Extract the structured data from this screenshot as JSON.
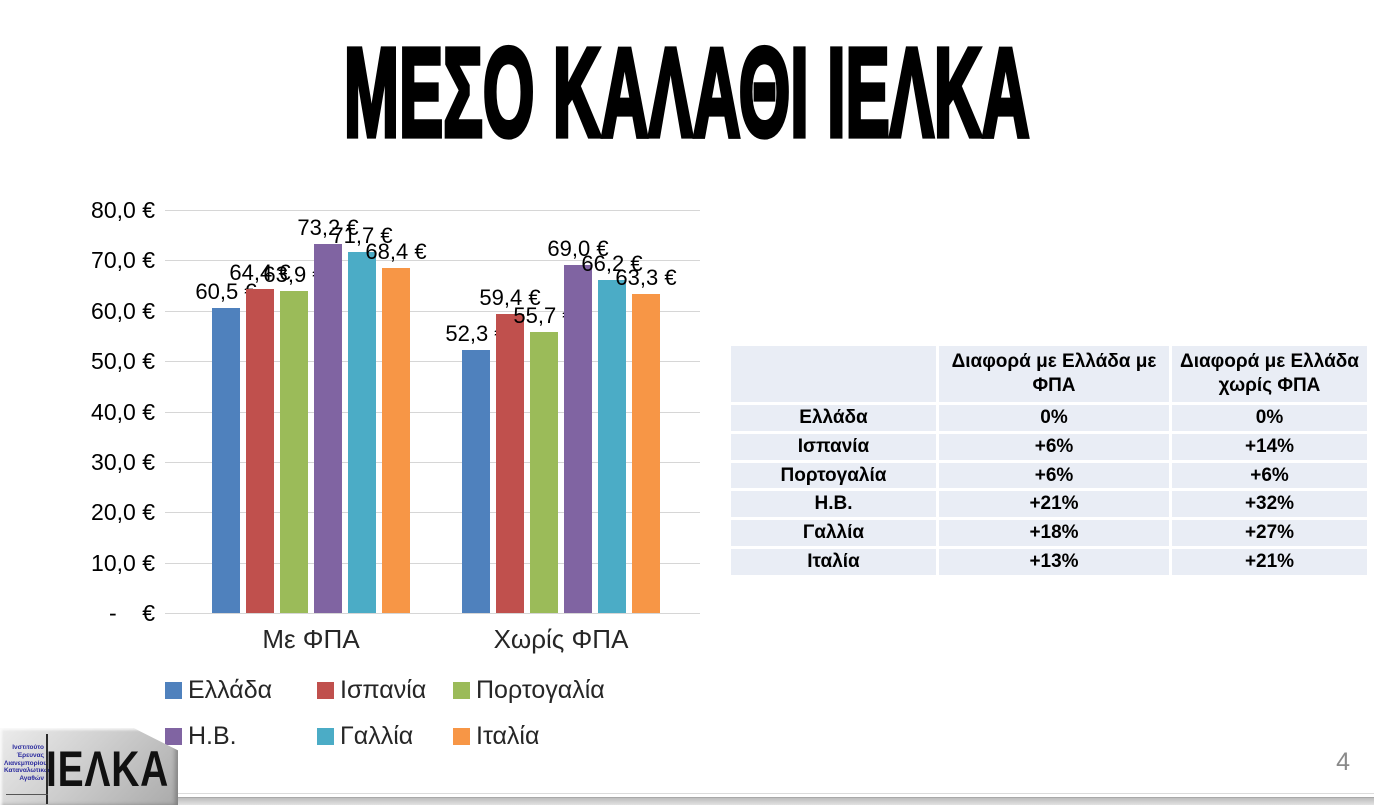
{
  "slide": {
    "title": "ΜΕΣΟ ΚΑΛΑΘΙ ΙΕΛΚΑ",
    "page_number": "4"
  },
  "logo": {
    "acronym": "ΙΕΛΚΑ",
    "subtext_lines": [
      "Ινστιτούτο",
      "Έρευνας",
      "Λιανεμπορίου",
      "Καταναλωτικών",
      "Αγαθών"
    ]
  },
  "chart_data": {
    "type": "bar",
    "title": "",
    "categories": [
      "Με ΦΠΑ",
      "Χωρίς ΦΠΑ"
    ],
    "series": [
      {
        "name": "Ελλάδα",
        "color": "#4F81BD",
        "values": [
          60.5,
          52.3
        ],
        "labels": [
          "60,5 €",
          "52,3 €"
        ]
      },
      {
        "name": "Ισπανία",
        "color": "#C0504D",
        "values": [
          64.4,
          59.4
        ],
        "labels": [
          "64,4 €",
          "59,4 €"
        ]
      },
      {
        "name": "Πορτογαλία",
        "color": "#9BBB59",
        "values": [
          63.9,
          55.7
        ],
        "labels": [
          "63,9 €",
          "55,7 €"
        ]
      },
      {
        "name": "Η.Β.",
        "color": "#8064A2",
        "values": [
          73.2,
          69.0
        ],
        "labels": [
          "73,2 €",
          "69,0 €"
        ]
      },
      {
        "name": "Γαλλία",
        "color": "#4BACC6",
        "values": [
          71.7,
          66.2
        ],
        "labels": [
          "71,7 €",
          "66,2 €"
        ]
      },
      {
        "name": "Ιταλία",
        "color": "#F79646",
        "values": [
          68.4,
          63.3
        ],
        "labels": [
          "68,4 €",
          "63,3 €"
        ]
      }
    ],
    "y_axis": {
      "ticks": [
        "80,0 €",
        "70,0 €",
        "60,0 €",
        "50,0 €",
        "40,0 €",
        "30,0 €",
        "20,0 €",
        "10,0 €",
        "-    €"
      ],
      "min": 0,
      "max": 80,
      "step": 10,
      "unit": "€"
    },
    "grid": true,
    "legend_position": "bottom"
  },
  "table": {
    "headers": [
      "",
      "Διαφορά με Ελλάδα με ΦΠΑ",
      "Διαφορά με Ελλάδα χωρίς ΦΠΑ"
    ],
    "rows": [
      [
        "Ελλάδα",
        "0%",
        "0%"
      ],
      [
        "Ισπανία",
        "+6%",
        "+14%"
      ],
      [
        "Πορτογαλία",
        "+6%",
        "+6%"
      ],
      [
        "Η.Β.",
        "+21%",
        "+32%"
      ],
      [
        "Γαλλία",
        "+18%",
        "+27%"
      ],
      [
        "Ιταλία",
        "+13%",
        "+21%"
      ]
    ]
  }
}
